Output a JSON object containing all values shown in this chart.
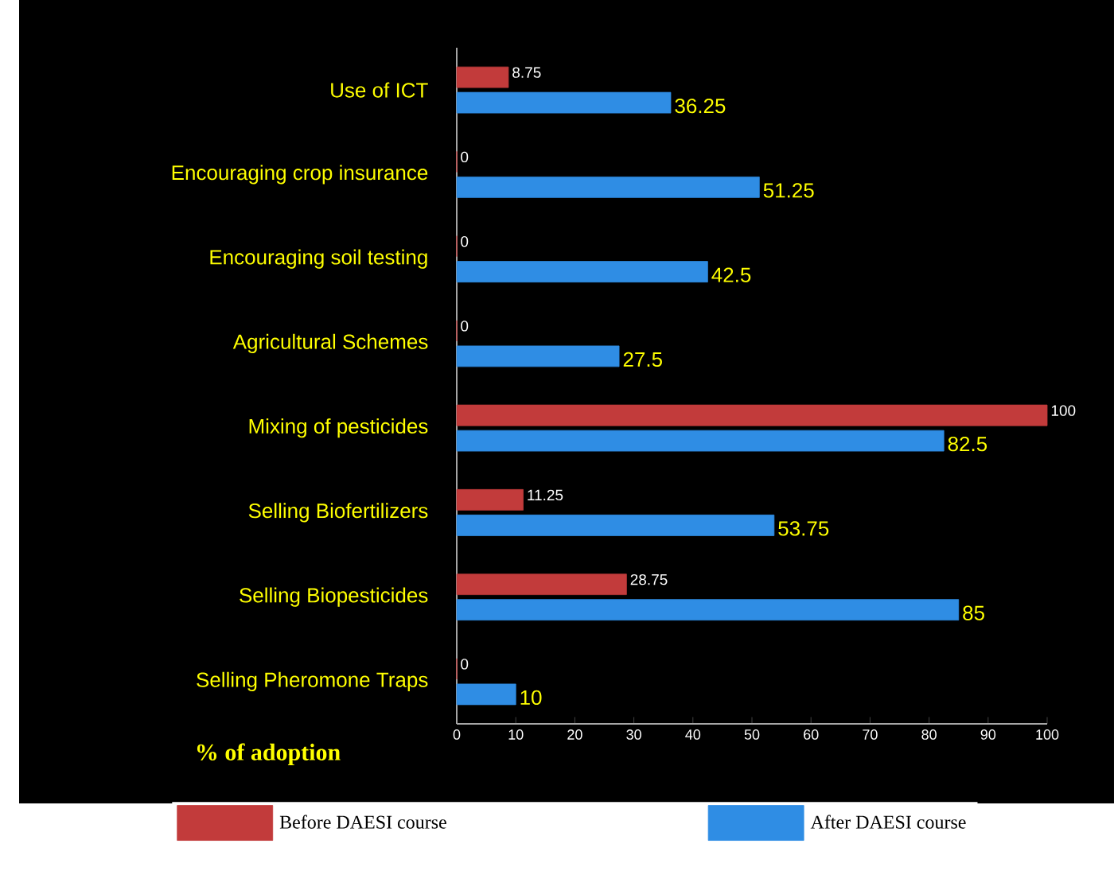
{
  "chart_data": {
    "type": "bar",
    "orientation": "horizontal",
    "categories": [
      "Use of ICT",
      "Encouraging crop insurance",
      "Encouraging soil testing",
      "Agricultural Schemes",
      "Mixing of pesticides",
      "Selling Biofertilizers",
      "Selling Biopesticides",
      "Selling Pheromone Traps"
    ],
    "series": [
      {
        "name": "Before DAESI course",
        "color": "#c23b3b",
        "values": [
          8.75,
          0,
          0,
          0,
          100,
          11.25,
          28.75,
          0
        ]
      },
      {
        "name": "After DAESI course",
        "color": "#2f8de4",
        "values": [
          36.25,
          51.25,
          42.5,
          27.5,
          82.5,
          53.75,
          85,
          10
        ]
      }
    ],
    "xlabel": "% of adoption",
    "xlim": [
      0,
      100
    ],
    "xticks": [
      0,
      10,
      20,
      30,
      40,
      50,
      60,
      70,
      80,
      90,
      100
    ],
    "data_labels": true,
    "legend": "bottom"
  }
}
